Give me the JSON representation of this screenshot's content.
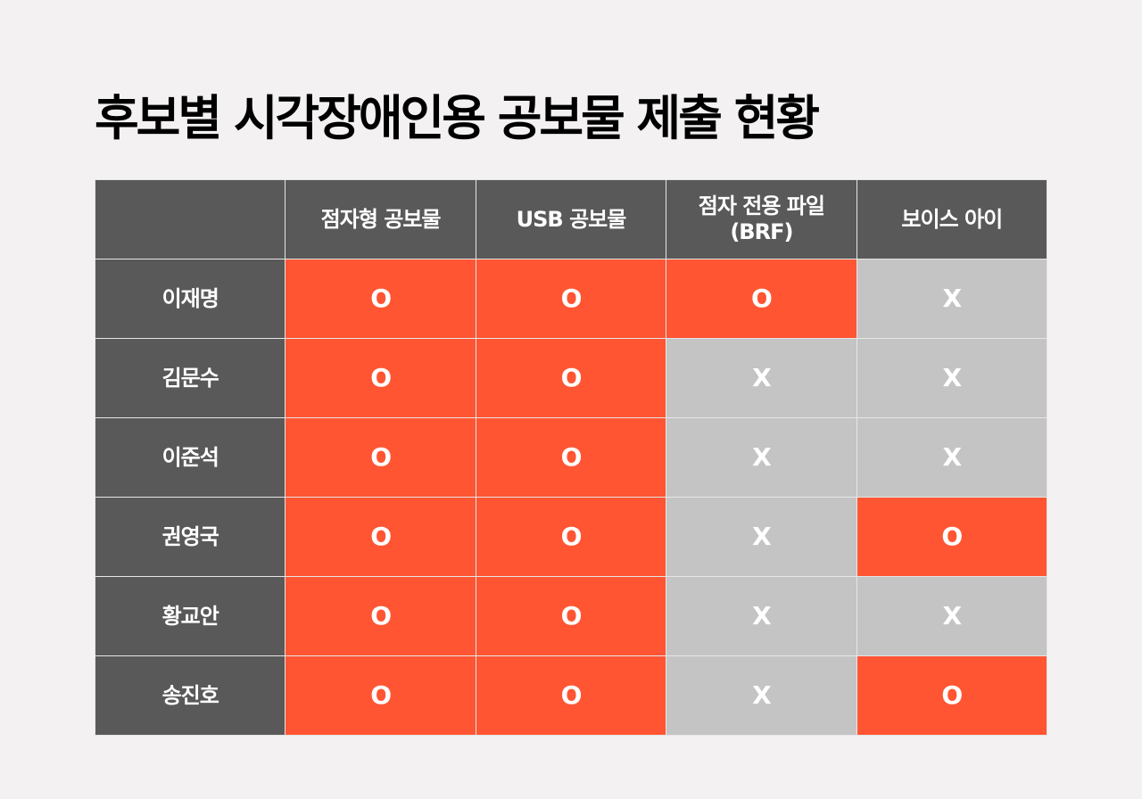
{
  "title": "후보별 시각장애인용 공보물 제출 현황",
  "header": [
    "",
    "점자형 공보물",
    "USB 공보물",
    "점자 전용 파일\n(BRF)",
    "보이스 아이"
  ],
  "rows": [
    {
      "name": "이재명",
      "values": [
        "O",
        "O",
        "O",
        "X"
      ]
    },
    {
      "name": "김문수",
      "values": [
        "O",
        "O",
        "X",
        "X"
      ]
    },
    {
      "name": "이준석",
      "values": [
        "O",
        "O",
        "X",
        "X"
      ]
    },
    {
      "name": "권영국",
      "values": [
        "O",
        "O",
        "X",
        "O"
      ]
    },
    {
      "name": "황교안",
      "values": [
        "O",
        "O",
        "X",
        "X"
      ]
    },
    {
      "name": "송진호",
      "values": [
        "O",
        "O",
        "X",
        "O"
      ]
    }
  ],
  "colors": {
    "yes": "#ff5533",
    "no": "#c4c4c4",
    "header": "#595959",
    "background": "#f3f1f2"
  }
}
